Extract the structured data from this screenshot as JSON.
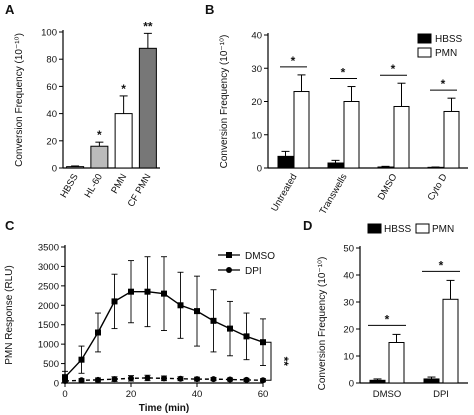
{
  "chart_data": [
    {
      "panel": "A",
      "type": "bar",
      "ylabel": "Conversion Frequency (10⁻¹⁰)",
      "ylim": [
        0,
        100
      ],
      "yticks": [
        0,
        20,
        40,
        60,
        80,
        100
      ],
      "categories": [
        "HBSS",
        "HL-60",
        "PMN",
        "CF PMN"
      ],
      "values": [
        1,
        16,
        40,
        88
      ],
      "errors": [
        0.5,
        3,
        13,
        11
      ],
      "bar_colors": [
        "#aaaaaa",
        "#bbbbbb",
        "#ffffff",
        "#777777"
      ],
      "annotations": [
        "",
        "*",
        "*",
        "**"
      ]
    },
    {
      "panel": "B",
      "type": "bar",
      "ylabel": "Conversion Frequency (10⁻¹⁰)",
      "ylim": [
        0,
        40
      ],
      "yticks": [
        0,
        10,
        20,
        30,
        40
      ],
      "categories": [
        "Untreated",
        "Transwells",
        "DMSO",
        "Cyto D"
      ],
      "series": [
        {
          "name": "HBSS",
          "color": "#000000",
          "values": [
            3.5,
            1.5,
            0.3,
            0.2
          ],
          "errors": [
            1.5,
            0.8,
            0.2,
            0.1
          ]
        },
        {
          "name": "PMN",
          "color": "#ffffff",
          "values": [
            23,
            20,
            18.5,
            17
          ],
          "errors": [
            5,
            4.5,
            7,
            4
          ]
        }
      ],
      "annotations": [
        "*",
        "*",
        "*",
        "*"
      ],
      "legend": "top-right"
    },
    {
      "panel": "C",
      "type": "line",
      "xlabel": "Time (min)",
      "ylabel": "PMN Response (RLU)",
      "xlim": [
        0,
        60
      ],
      "ylim": [
        0,
        3500
      ],
      "xticks": [
        0,
        20,
        40,
        60
      ],
      "yticks": [
        0,
        500,
        1000,
        1500,
        2000,
        2500,
        3000,
        3500
      ],
      "x": [
        0,
        5,
        10,
        15,
        20,
        25,
        30,
        35,
        40,
        45,
        50,
        55,
        60
      ],
      "series": [
        {
          "name": "DMSO",
          "marker": "square",
          "values": [
            150,
            600,
            1300,
            2100,
            2350,
            2350,
            2300,
            2000,
            1850,
            1600,
            1400,
            1200,
            1050
          ],
          "errors": [
            150,
            350,
            500,
            700,
            800,
            900,
            950,
            850,
            900,
            800,
            700,
            600,
            600
          ]
        },
        {
          "name": "DPI",
          "marker": "circle",
          "values": [
            50,
            70,
            80,
            100,
            120,
            130,
            120,
            110,
            100,
            100,
            90,
            80,
            70
          ],
          "errors": [
            40,
            40,
            50,
            60,
            70,
            70,
            60,
            50,
            50,
            40,
            40,
            40,
            40
          ]
        }
      ],
      "annotations": [
        "**"
      ],
      "legend": "top-right"
    },
    {
      "panel": "D",
      "type": "bar",
      "ylabel": "Conversion Frequency (10⁻¹⁰)",
      "ylim": [
        0,
        50
      ],
      "yticks": [
        0,
        10,
        20,
        30,
        40,
        50
      ],
      "categories": [
        "DMSO",
        "DPI"
      ],
      "series": [
        {
          "name": "HBSS",
          "color": "#000000",
          "values": [
            1,
            1.5
          ],
          "errors": [
            0.5,
            0.7
          ]
        },
        {
          "name": "PMN",
          "color": "#ffffff",
          "values": [
            15,
            31
          ],
          "errors": [
            3,
            7
          ]
        }
      ],
      "annotations": [
        "*",
        "*"
      ],
      "legend": "top"
    }
  ]
}
